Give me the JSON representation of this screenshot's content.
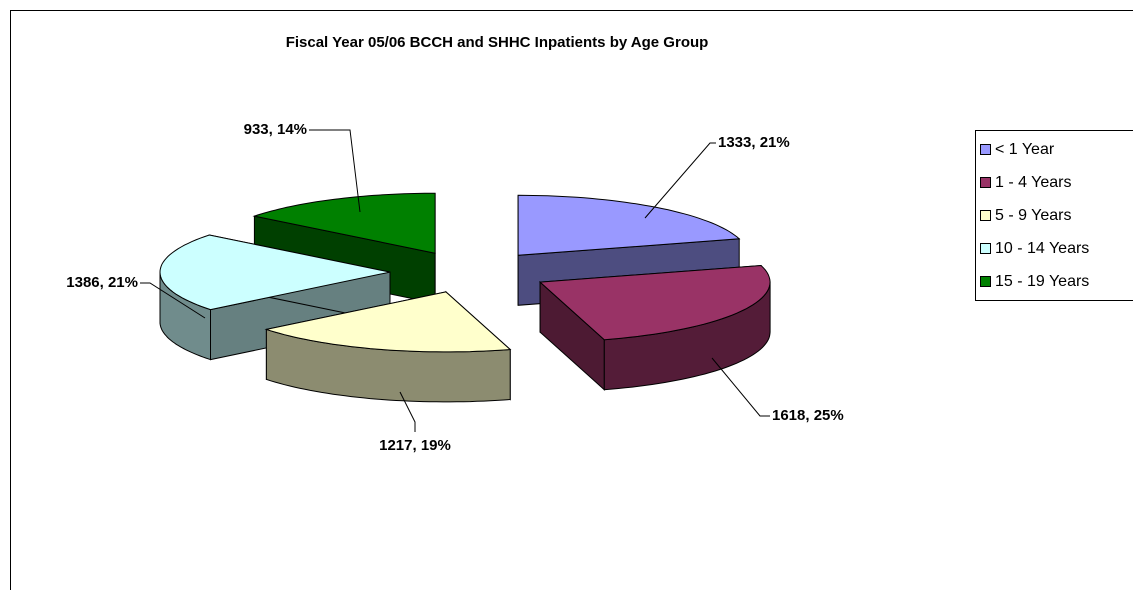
{
  "chart_data": {
    "type": "pie3d",
    "title": "Fiscal Year 05/06 BCCH and SHHC Inpatients by Age Group",
    "categories": [
      "< 1 Year",
      "1 - 4 Years",
      "5 - 9 Years",
      "10 - 14 Years",
      "15 - 19 Years"
    ],
    "values": [
      1333,
      1618,
      1217,
      1386,
      933
    ],
    "value_labels": [
      "1333, 21%",
      "1618, 25%",
      "1217, 19%",
      "1386, 21%",
      "933, 14%"
    ],
    "colors": [
      "#9999ff",
      "#993366",
      "#ffffcc",
      "#ccffff",
      "#008000"
    ],
    "legend": "right"
  }
}
